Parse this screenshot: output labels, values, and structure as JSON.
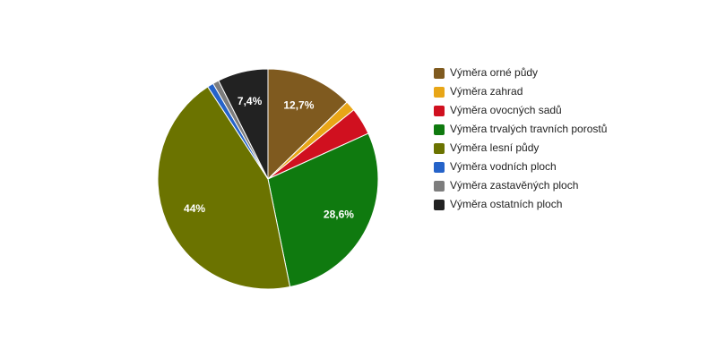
{
  "chart_data": {
    "type": "pie",
    "categories": [
      "Výměra orné půdy",
      "Výměra zahrad",
      "Výměra ovocných sadů",
      "Výměra trvalých travních porostů",
      "Výměra lesní půdy",
      "Výměra vodních ploch",
      "Výměra zastavěných ploch",
      "Výměra ostatních ploch"
    ],
    "values": [
      12.7,
      1.5,
      4,
      28.6,
      44,
      0.9,
      0.9,
      7.4
    ],
    "value_labels": [
      "12,7%",
      null,
      null,
      "28,6%",
      "44%",
      null,
      null,
      "7,4%"
    ],
    "colors": [
      "#7f5a1f",
      "#e8a617",
      "#d0101f",
      "#0f7a0f",
      "#6b7300",
      "#2563c9",
      "#7d7d7d",
      "#222222"
    ],
    "legend": "right"
  }
}
